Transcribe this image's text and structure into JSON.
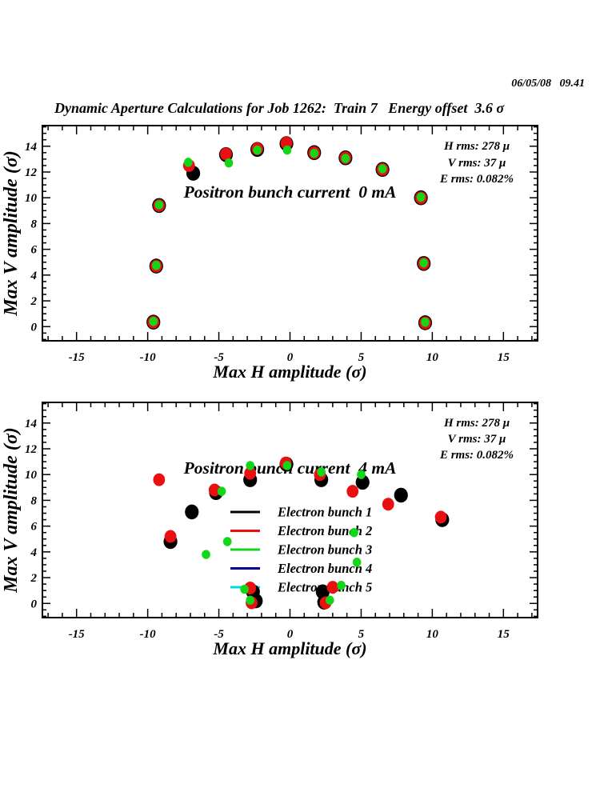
{
  "page": {
    "background_color": "#ffffff"
  },
  "header": {
    "datetime": "06/05/08   09.41",
    "title": "Dynamic Aperture Calculations for Job 1262:  Train 7   Energy offset  3.6 σ"
  },
  "colors": {
    "bunch1": "#000000",
    "bunch2": "#e81010",
    "bunch3": "#12d618",
    "bunch4": "#000099",
    "bunch5": "#00d8e8",
    "axis": "#000000"
  },
  "chart_data": [
    {
      "type": "scatter",
      "plot_title": "Positron bunch current  0 mA",
      "xlabel": "Max H amplitude (σ)",
      "ylabel": "Max V amplitude (σ)",
      "annotations": [
        "H rms: 278 μ",
        "V rms: 37 μ",
        "E rms: 0.082%"
      ],
      "xlim": [
        -17.4,
        17.4
      ],
      "ylim": [
        -1.1,
        15.6
      ],
      "x_tick_labels": [
        -15,
        -10,
        -5,
        0,
        5,
        10,
        15
      ],
      "y_tick_labels": [
        0,
        2,
        4,
        6,
        8,
        10,
        12,
        14
      ],
      "x_major_step": 5,
      "x_minor_step": 1,
      "y_major_step": 2,
      "y_minor_step": 0.5,
      "grid": false,
      "legend": null,
      "series": [
        {
          "name": "Electron bunch 1",
          "color": "#000000",
          "points": [
            [
              -9.2,
              9.4
            ],
            [
              -6.8,
              11.9
            ],
            [
              -4.5,
              13.35
            ],
            [
              -2.3,
              13.75
            ],
            [
              -0.25,
              14.2
            ],
            [
              1.7,
              13.5
            ],
            [
              3.9,
              13.1
            ],
            [
              6.5,
              12.2
            ],
            [
              9.2,
              10.0
            ],
            [
              -9.4,
              4.7
            ],
            [
              9.4,
              4.9
            ],
            [
              -9.6,
              0.35
            ],
            [
              9.5,
              0.3
            ]
          ]
        },
        {
          "name": "Electron bunch 2",
          "color": "#e81010",
          "points": [
            [
              -9.2,
              9.4
            ],
            [
              -7.1,
              12.5
            ],
            [
              -4.5,
              13.4
            ],
            [
              -2.3,
              13.8
            ],
            [
              -0.25,
              14.25
            ],
            [
              1.7,
              13.5
            ],
            [
              3.9,
              13.1
            ],
            [
              6.5,
              12.2
            ],
            [
              9.2,
              10.0
            ],
            [
              -9.4,
              4.7
            ],
            [
              9.4,
              4.9
            ],
            [
              -9.6,
              0.35
            ],
            [
              9.5,
              0.3
            ]
          ]
        },
        {
          "name": "Electron bunch 3",
          "color": "#12d618",
          "points": [
            [
              -9.2,
              9.45
            ],
            [
              -7.15,
              12.75
            ],
            [
              -4.3,
              12.7
            ],
            [
              -2.3,
              13.7
            ],
            [
              -0.2,
              13.7
            ],
            [
              1.7,
              13.45
            ],
            [
              3.9,
              13.05
            ],
            [
              6.5,
              12.25
            ],
            [
              9.2,
              10.05
            ],
            [
              -9.4,
              4.75
            ],
            [
              9.4,
              4.95
            ],
            [
              -9.6,
              0.4
            ],
            [
              9.5,
              0.35
            ]
          ]
        },
        {
          "name": "Electron bunch 4",
          "color": "#000099",
          "points": []
        },
        {
          "name": "Electron bunch 5",
          "color": "#00d8e8",
          "points": []
        }
      ]
    },
    {
      "type": "scatter",
      "plot_title": "Positron bunch current  4 mA",
      "xlabel": "Max H amplitude (σ)",
      "ylabel": "Max V amplitude (σ)",
      "annotations": [
        "H rms: 278 μ",
        "V rms: 37 μ",
        "E rms: 0.082%"
      ],
      "xlim": [
        -17.4,
        17.4
      ],
      "ylim": [
        -1.1,
        15.6
      ],
      "x_tick_labels": [
        -15,
        -10,
        -5,
        0,
        5,
        10,
        15
      ],
      "y_tick_labels": [
        0,
        2,
        4,
        6,
        8,
        10,
        12,
        14
      ],
      "x_major_step": 5,
      "x_minor_step": 1,
      "y_major_step": 2,
      "y_minor_step": 0.5,
      "grid": false,
      "legend": {
        "position": "inside-center-left",
        "entries": [
          {
            "label": "Electron bunch 1",
            "color": "#000000"
          },
          {
            "label": "Electron bunch 2",
            "color": "#e81010"
          },
          {
            "label": "Electron bunch 3",
            "color": "#12d618"
          },
          {
            "label": "Electron bunch 4",
            "color": "#000099"
          },
          {
            "label": "Electron bunch 5",
            "color": "#00d8e8"
          }
        ]
      },
      "series": [
        {
          "name": "Electron bunch 1",
          "color": "#000000",
          "points": [
            [
              -8.4,
              4.8
            ],
            [
              -6.9,
              7.1
            ],
            [
              -5.2,
              8.6
            ],
            [
              -2.8,
              9.6
            ],
            [
              -0.25,
              10.8
            ],
            [
              2.2,
              9.6
            ],
            [
              5.1,
              9.4
            ],
            [
              7.8,
              8.4
            ],
            [
              10.7,
              6.5
            ],
            [
              -2.6,
              0.9
            ],
            [
              -2.4,
              0.2
            ],
            [
              2.3,
              0.9
            ],
            [
              2.4,
              0.1
            ]
          ]
        },
        {
          "name": "Electron bunch 2",
          "color": "#e81010",
          "points": [
            [
              -9.2,
              9.6
            ],
            [
              -8.4,
              5.2
            ],
            [
              -5.3,
              8.8
            ],
            [
              -2.8,
              10.1
            ],
            [
              -0.3,
              10.9
            ],
            [
              2.1,
              10.0
            ],
            [
              4.4,
              8.7
            ],
            [
              6.9,
              7.7
            ],
            [
              10.6,
              6.7
            ],
            [
              -2.8,
              1.2
            ],
            [
              -2.7,
              0.05
            ],
            [
              3.0,
              1.25
            ],
            [
              2.5,
              0.05
            ]
          ]
        },
        {
          "name": "Electron bunch 3",
          "color": "#12d618",
          "points": [
            [
              -5.9,
              3.8
            ],
            [
              -4.4,
              4.8
            ],
            [
              -4.8,
              8.7
            ],
            [
              -2.8,
              10.7
            ],
            [
              -0.2,
              10.7
            ],
            [
              2.2,
              10.2
            ],
            [
              5.0,
              10.0
            ],
            [
              4.5,
              5.5
            ],
            [
              4.7,
              3.2
            ],
            [
              -3.2,
              1.1
            ],
            [
              -2.8,
              0.25
            ],
            [
              3.6,
              1.4
            ],
            [
              2.8,
              0.25
            ]
          ]
        },
        {
          "name": "Electron bunch 4",
          "color": "#000099",
          "points": []
        },
        {
          "name": "Electron bunch 5",
          "color": "#00d8e8",
          "points": []
        }
      ]
    }
  ]
}
